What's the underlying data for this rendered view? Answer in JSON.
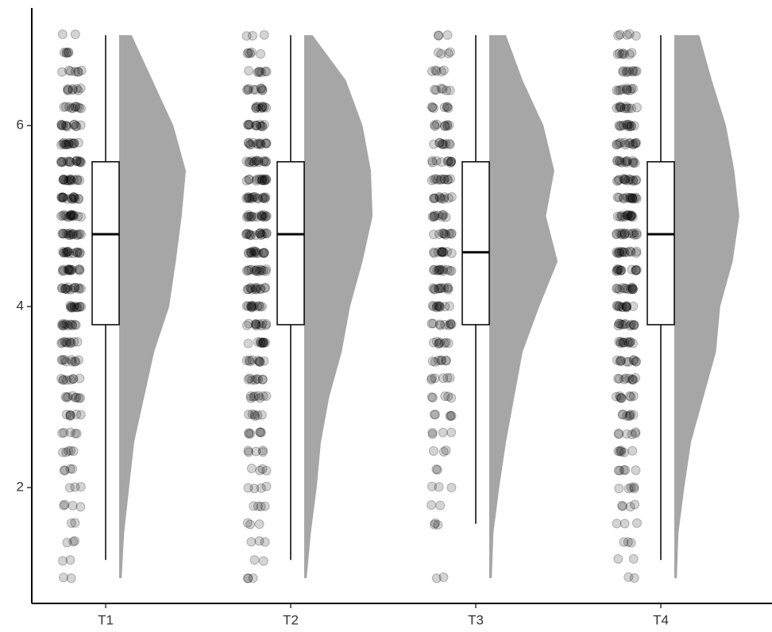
{
  "chart_data": {
    "type": "raincloud",
    "categories": [
      "T1",
      "T2",
      "T3",
      "T4"
    ],
    "ylim": [
      0.72,
      7.3
    ],
    "yticks": [
      2,
      4,
      6
    ],
    "point_color": "#000000",
    "density_color": "#a6a6a6",
    "box_color": "#ffffff",
    "density_y": [
      1,
      1.5,
      2,
      2.5,
      3,
      3.5,
      4,
      4.5,
      5,
      5.5,
      6,
      6.5,
      7
    ],
    "point_levels": [
      1.0,
      1.2,
      1.4,
      1.6,
      1.8,
      2.0,
      2.2,
      2.4,
      2.6,
      2.8,
      3.0,
      3.2,
      3.4,
      3.6,
      3.8,
      4.0,
      4.2,
      4.4,
      4.6,
      4.8,
      5.0,
      5.2,
      5.4,
      5.6,
      5.8,
      6.0,
      6.2,
      6.4,
      6.6,
      6.8,
      7.0
    ],
    "groups": [
      {
        "whisker_low": 1.2,
        "q1": 3.8,
        "median": 4.8,
        "q3": 5.6,
        "whisker_high": 7,
        "density": [
          3,
          6,
          12,
          18,
          30,
          42,
          60,
          68,
          75,
          80,
          65,
          40,
          15
        ],
        "point_counts": [
          2,
          2,
          3,
          2,
          4,
          3,
          4,
          5,
          5,
          6,
          8,
          8,
          9,
          10,
          12,
          12,
          14,
          14,
          15,
          15,
          16,
          16,
          15,
          15,
          14,
          12,
          10,
          8,
          7,
          5,
          2
        ]
      },
      {
        "whisker_low": 1.2,
        "q1": 3.8,
        "median": 4.8,
        "q3": 5.6,
        "whisker_high": 7,
        "density": [
          3,
          8,
          15,
          20,
          30,
          45,
          55,
          70,
          82,
          80,
          70,
          50,
          10
        ],
        "point_counts": [
          3,
          2,
          3,
          3,
          4,
          4,
          4,
          5,
          6,
          6,
          8,
          8,
          9,
          10,
          11,
          12,
          13,
          14,
          15,
          15,
          16,
          16,
          15,
          14,
          13,
          12,
          10,
          9,
          7,
          5,
          3
        ]
      },
      {
        "whisker_low": 1.6,
        "q1": 3.8,
        "median": 4.6,
        "q3": 5.6,
        "whisker_high": 7,
        "density": [
          3,
          5,
          12,
          20,
          30,
          40,
          60,
          82,
          68,
          78,
          65,
          40,
          20
        ],
        "point_counts": [
          2,
          0,
          0,
          3,
          2,
          3,
          2,
          3,
          4,
          5,
          5,
          6,
          7,
          8,
          9,
          10,
          11,
          12,
          11,
          9,
          9,
          10,
          11,
          10,
          9,
          8,
          7,
          6,
          5,
          4,
          3
        ]
      },
      {
        "whisker_low": 1.2,
        "q1": 3.8,
        "median": 4.8,
        "q3": 5.6,
        "whisker_high": 7,
        "density": [
          3,
          5,
          12,
          20,
          35,
          50,
          55,
          70,
          78,
          72,
          62,
          45,
          30
        ],
        "point_counts": [
          2,
          2,
          3,
          3,
          4,
          5,
          5,
          6,
          6,
          7,
          8,
          9,
          10,
          11,
          12,
          12,
          13,
          13,
          14,
          14,
          15,
          15,
          14,
          13,
          13,
          12,
          11,
          10,
          9,
          7,
          5
        ]
      }
    ]
  }
}
